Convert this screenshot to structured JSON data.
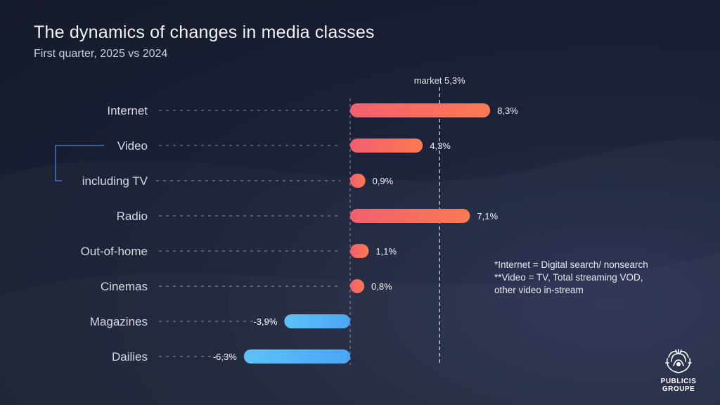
{
  "title": "The dynamics of changes in media classes",
  "subtitle": "First quarter, 2025 vs 2024",
  "notes": [
    "*Internet = Digital search/ nonsearch",
    "**Video = TV, Total streaming VOD,",
    "other video in-stream"
  ],
  "logo": {
    "line1": "PUBLICIS",
    "line2": "GROUPE"
  },
  "chart_data": {
    "type": "bar",
    "orientation": "horizontal",
    "title": "The dynamics of changes in media classes",
    "subtitle": "First quarter, 2025 vs 2024",
    "categories": [
      "Internet",
      "Video",
      "including TV",
      "Radio",
      "Out-of-home",
      "Cinemas",
      "Magazines",
      "Dailies"
    ],
    "values": [
      8.3,
      4.3,
      0.9,
      7.1,
      1.1,
      0.8,
      -3.9,
      -6.3
    ],
    "value_labels": [
      "8,3%",
      "4,3%",
      "0,9%",
      "7,1%",
      "1,1%",
      "0,8%",
      "-3,9%",
      "-6,3%"
    ],
    "unit": "%",
    "reference_line": {
      "value": 5.3,
      "label": "market 5,3%"
    },
    "bracket": {
      "from": "Video",
      "to": "including TV"
    },
    "colors": {
      "positive_start": "#f25f6f",
      "positive_end": "#fb7a52",
      "negative_start": "#5ec2f7",
      "negative_end": "#4aa6f5",
      "guide": "#8a90a8",
      "bracket": "#4a86d8"
    },
    "grid": false,
    "legend": "none"
  }
}
